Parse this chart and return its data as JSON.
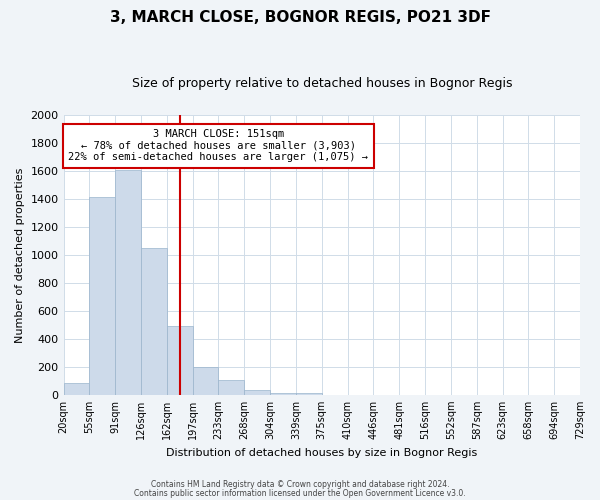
{
  "title": "3, MARCH CLOSE, BOGNOR REGIS, PO21 3DF",
  "subtitle": "Size of property relative to detached houses in Bognor Regis",
  "xlabel": "Distribution of detached houses by size in Bognor Regis",
  "ylabel": "Number of detached properties",
  "bin_labels": [
    "20sqm",
    "55sqm",
    "91sqm",
    "126sqm",
    "162sqm",
    "197sqm",
    "233sqm",
    "268sqm",
    "304sqm",
    "339sqm",
    "375sqm",
    "410sqm",
    "446sqm",
    "481sqm",
    "516sqm",
    "552sqm",
    "587sqm",
    "623sqm",
    "658sqm",
    "694sqm",
    "729sqm"
  ],
  "bar_heights": [
    85,
    1415,
    1610,
    1050,
    490,
    200,
    105,
    35,
    15,
    10,
    0,
    0,
    0,
    0,
    0,
    0,
    0,
    0,
    0,
    0
  ],
  "bar_color": "#cddaea",
  "bar_edge_color": "#9ab4cc",
  "vline_x_idx": 4,
  "vline_color": "#cc0000",
  "annotation_line1": "3 MARCH CLOSE: 151sqm",
  "annotation_line2": "← 78% of detached houses are smaller (3,903)",
  "annotation_line3": "22% of semi-detached houses are larger (1,075) →",
  "annotation_box_color": "#ffffff",
  "annotation_box_edge": "#cc0000",
  "ylim": [
    0,
    2000
  ],
  "yticks": [
    0,
    200,
    400,
    600,
    800,
    1000,
    1200,
    1400,
    1600,
    1800,
    2000
  ],
  "footer1": "Contains HM Land Registry data © Crown copyright and database right 2024.",
  "footer2": "Contains public sector information licensed under the Open Government Licence v3.0.",
  "bg_color": "#f0f4f8",
  "plot_bg_color": "#ffffff",
  "grid_color": "#d0dce8",
  "title_fontsize": 11,
  "subtitle_fontsize": 9,
  "ylabel_fontsize": 8,
  "xlabel_fontsize": 8,
  "ytick_fontsize": 8,
  "xtick_fontsize": 7
}
